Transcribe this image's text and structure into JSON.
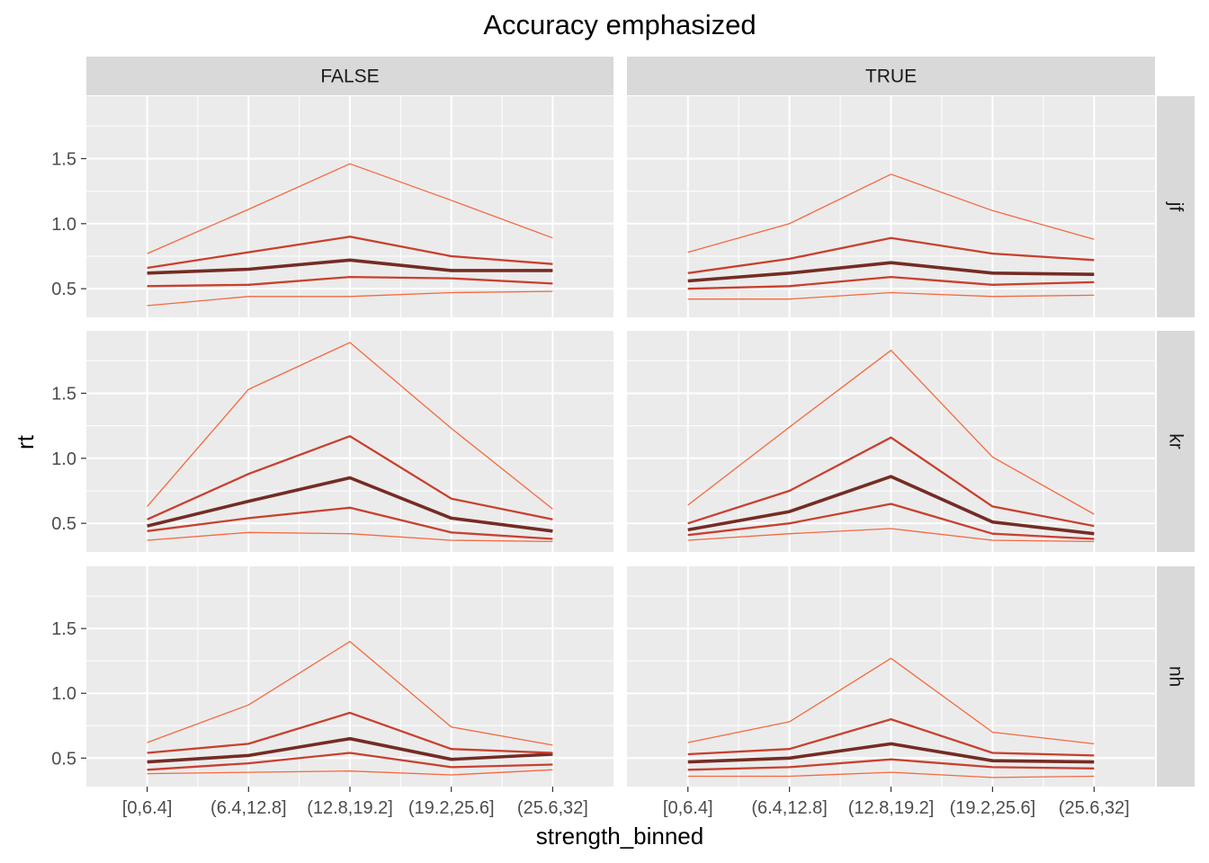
{
  "chart_data": {
    "type": "line",
    "title": "Accuracy emphasized",
    "xlabel": "strength_binned",
    "ylabel": "rt",
    "categories": [
      "[0,6.4]",
      "(6.4,12.8]",
      "(12.8,19.2]",
      "(19.2,25.6]",
      "(25.6,32]"
    ],
    "ylim": [
      0.28,
      1.98
    ],
    "yticks": [
      0.5,
      1.0,
      1.5
    ],
    "ytick_labels": [
      "0.5",
      "1.0",
      "1.5"
    ],
    "grid": true,
    "facet_columns": [
      "FALSE",
      "TRUE"
    ],
    "facet_rows": [
      "jf",
      "kr",
      "nh"
    ],
    "series_colors": [
      "#f4693f",
      "#c8402f",
      "#742c24",
      "#c8402f",
      "#f4693f"
    ],
    "panels": [
      {
        "column": "FALSE",
        "row": "jf",
        "series": [
          {
            "values": [
              0.37,
              0.44,
              0.44,
              0.47,
              0.48
            ]
          },
          {
            "values": [
              0.52,
              0.53,
              0.59,
              0.58,
              0.54
            ]
          },
          {
            "values": [
              0.62,
              0.65,
              0.72,
              0.64,
              0.64
            ]
          },
          {
            "values": [
              0.66,
              0.78,
              0.9,
              0.75,
              0.69
            ]
          },
          {
            "values": [
              0.77,
              1.11,
              1.46,
              1.18,
              0.89
            ]
          }
        ]
      },
      {
        "column": "TRUE",
        "row": "jf",
        "series": [
          {
            "values": [
              0.42,
              0.42,
              0.47,
              0.44,
              0.45
            ]
          },
          {
            "values": [
              0.5,
              0.52,
              0.59,
              0.53,
              0.55
            ]
          },
          {
            "values": [
              0.56,
              0.62,
              0.7,
              0.62,
              0.61
            ]
          },
          {
            "values": [
              0.62,
              0.73,
              0.89,
              0.77,
              0.72
            ]
          },
          {
            "values": [
              0.78,
              1.0,
              1.38,
              1.1,
              0.88
            ]
          }
        ]
      },
      {
        "column": "FALSE",
        "row": "kr",
        "series": [
          {
            "values": [
              0.37,
              0.43,
              0.42,
              0.37,
              0.36
            ]
          },
          {
            "values": [
              0.44,
              0.54,
              0.62,
              0.43,
              0.38
            ]
          },
          {
            "values": [
              0.48,
              0.67,
              0.85,
              0.54,
              0.44
            ]
          },
          {
            "values": [
              0.53,
              0.88,
              1.17,
              0.69,
              0.53
            ]
          },
          {
            "values": [
              0.63,
              1.53,
              1.89,
              1.23,
              0.61
            ]
          }
        ]
      },
      {
        "column": "TRUE",
        "row": "kr",
        "series": [
          {
            "values": [
              0.37,
              0.42,
              0.46,
              0.37,
              0.36
            ]
          },
          {
            "values": [
              0.41,
              0.5,
              0.65,
              0.42,
              0.38
            ]
          },
          {
            "values": [
              0.45,
              0.59,
              0.86,
              0.51,
              0.42
            ]
          },
          {
            "values": [
              0.5,
              0.75,
              1.16,
              0.63,
              0.48
            ]
          },
          {
            "values": [
              0.64,
              1.24,
              1.83,
              1.01,
              0.57
            ]
          }
        ]
      },
      {
        "column": "FALSE",
        "row": "nh",
        "series": [
          {
            "values": [
              0.38,
              0.39,
              0.4,
              0.37,
              0.41
            ]
          },
          {
            "values": [
              0.41,
              0.46,
              0.54,
              0.43,
              0.45
            ]
          },
          {
            "values": [
              0.47,
              0.52,
              0.65,
              0.49,
              0.53
            ]
          },
          {
            "values": [
              0.54,
              0.61,
              0.85,
              0.57,
              0.54
            ]
          },
          {
            "values": [
              0.62,
              0.91,
              1.4,
              0.74,
              0.6
            ]
          }
        ]
      },
      {
        "column": "TRUE",
        "row": "nh",
        "series": [
          {
            "values": [
              0.36,
              0.36,
              0.39,
              0.35,
              0.36
            ]
          },
          {
            "values": [
              0.41,
              0.43,
              0.49,
              0.43,
              0.42
            ]
          },
          {
            "values": [
              0.47,
              0.5,
              0.61,
              0.48,
              0.47
            ]
          },
          {
            "values": [
              0.53,
              0.57,
              0.8,
              0.54,
              0.52
            ]
          },
          {
            "values": [
              0.62,
              0.78,
              1.27,
              0.7,
              0.61
            ]
          }
        ]
      }
    ]
  }
}
